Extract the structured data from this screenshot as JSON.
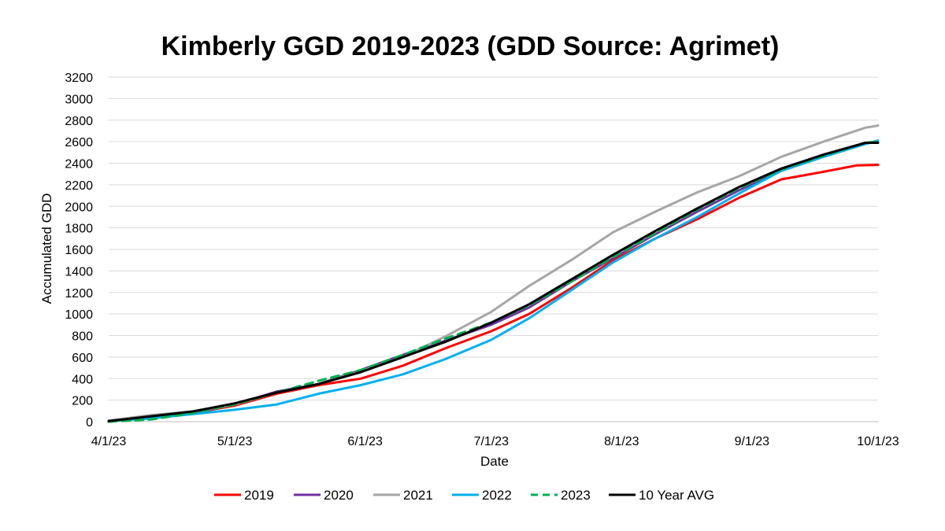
{
  "chart_data": {
    "type": "line",
    "title": "Kimberly GGD 2019-2023 (GDD Source: Agrimet)",
    "xlabel": "Date",
    "ylabel": "Accumulated GDD",
    "ylim": [
      0,
      3200
    ],
    "yticks": [
      0,
      200,
      400,
      600,
      800,
      1000,
      1200,
      1400,
      1600,
      1800,
      2000,
      2200,
      2400,
      2600,
      2800,
      3000,
      3200
    ],
    "x_tick_days": [
      0,
      30,
      61,
      91,
      122,
      153,
      183
    ],
    "x_tick_labels": [
      "4/1/23",
      "5/1/23",
      "6/1/23",
      "7/1/23",
      "8/1/23",
      "9/1/23",
      "10/1/23"
    ],
    "xlim": [
      0,
      183
    ],
    "legend_position": "bottom",
    "grid": true,
    "series": [
      {
        "name": "2019",
        "color": "#ff0000",
        "dashed": false,
        "x": [
          0,
          10,
          20,
          30,
          40,
          50,
          60,
          70,
          80,
          91,
          100,
          110,
          120,
          130,
          140,
          150,
          160,
          170,
          178,
          183
        ],
        "y": [
          5,
          40,
          80,
          150,
          260,
          340,
          400,
          520,
          680,
          840,
          1000,
          1240,
          1500,
          1700,
          1880,
          2080,
          2250,
          2320,
          2380,
          2385
        ]
      },
      {
        "name": "2020",
        "color": "#7030a0",
        "dashed": false,
        "x": [
          0,
          10,
          20,
          30,
          40,
          50,
          60,
          70,
          80,
          91,
          100,
          110,
          120,
          130,
          140,
          150,
          160,
          170,
          180,
          183
        ],
        "y": [
          5,
          45,
          85,
          160,
          280,
          350,
          480,
          620,
          750,
          900,
          1060,
          1300,
          1520,
          1740,
          1950,
          2150,
          2330,
          2460,
          2580,
          2610
        ]
      },
      {
        "name": "2021",
        "color": "#a6a6a6",
        "dashed": false,
        "x": [
          0,
          10,
          20,
          30,
          40,
          50,
          60,
          70,
          80,
          91,
          100,
          110,
          120,
          130,
          140,
          150,
          160,
          170,
          180,
          183
        ],
        "y": [
          10,
          60,
          95,
          160,
          270,
          350,
          470,
          600,
          790,
          1020,
          1260,
          1500,
          1760,
          1950,
          2130,
          2280,
          2460,
          2600,
          2730,
          2750
        ]
      },
      {
        "name": "2022",
        "color": "#00b0f0",
        "dashed": false,
        "x": [
          0,
          10,
          20,
          30,
          40,
          50,
          60,
          70,
          80,
          91,
          100,
          110,
          120,
          130,
          140,
          150,
          160,
          170,
          180,
          183
        ],
        "y": [
          5,
          30,
          70,
          110,
          160,
          260,
          340,
          440,
          580,
          760,
          960,
          1220,
          1480,
          1700,
          1900,
          2120,
          2330,
          2460,
          2580,
          2610
        ]
      },
      {
        "name": "2023",
        "color": "#00b050",
        "dashed": true,
        "x": [
          0,
          10,
          20,
          30,
          40,
          50,
          60,
          70,
          80,
          91,
          100,
          110,
          120,
          130,
          140,
          150,
          160,
          170,
          180,
          183
        ],
        "y": [
          0,
          20,
          80,
          160,
          270,
          380,
          480,
          620,
          770,
          920,
          1080,
          1300,
          1530,
          1750,
          1970,
          2170,
          2340,
          2470,
          2590,
          2600
        ]
      },
      {
        "name": "10 Year AVG",
        "color": "#000000",
        "dashed": false,
        "x": [
          0,
          10,
          20,
          30,
          40,
          50,
          60,
          70,
          80,
          91,
          100,
          110,
          120,
          130,
          140,
          150,
          160,
          170,
          180,
          183
        ],
        "y": [
          5,
          50,
          95,
          170,
          270,
          350,
          460,
          600,
          740,
          920,
          1090,
          1320,
          1550,
          1770,
          1980,
          2180,
          2350,
          2480,
          2590,
          2590
        ]
      }
    ]
  }
}
